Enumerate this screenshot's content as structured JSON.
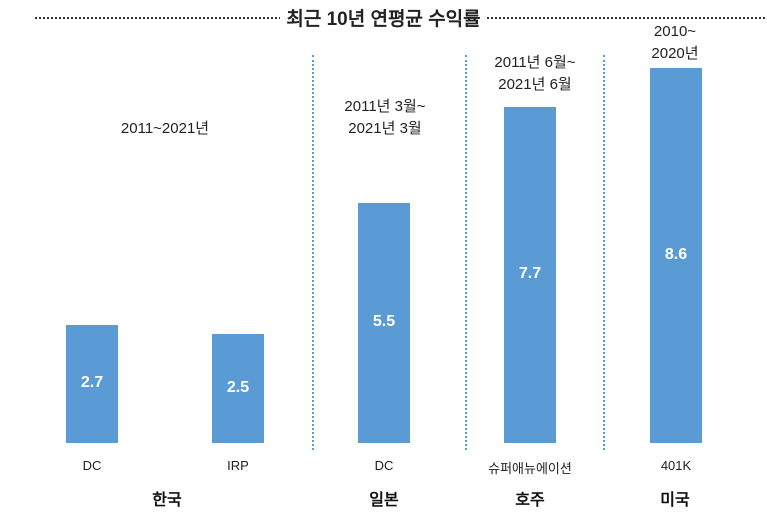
{
  "chart_data": {
    "type": "bar",
    "title": "최근 10년 연평균 수익률",
    "categories": [
      "DC",
      "IRP",
      "DC",
      "슈퍼애뉴에이션",
      "401K"
    ],
    "groups": [
      {
        "country": "한국",
        "period": "2011~2021년",
        "bars": [
          0,
          1
        ]
      },
      {
        "country": "일본",
        "period": [
          "2011년 3월~",
          "2021년 3월"
        ],
        "bars": [
          2
        ]
      },
      {
        "country": "호주",
        "period": [
          "2011년 6월~",
          "2021년 6월"
        ],
        "bars": [
          3
        ]
      },
      {
        "country": "미국",
        "period": [
          "2010~",
          "2020년"
        ],
        "bars": [
          4
        ]
      }
    ],
    "values": [
      2.7,
      2.5,
      5.5,
      7.7,
      8.6
    ],
    "labels": [
      "2.7",
      "2.5",
      "5.5",
      "7.7",
      "8.6"
    ],
    "ylim": [
      0,
      9
    ],
    "grid": false,
    "bar_color": "#5b9bd5"
  }
}
